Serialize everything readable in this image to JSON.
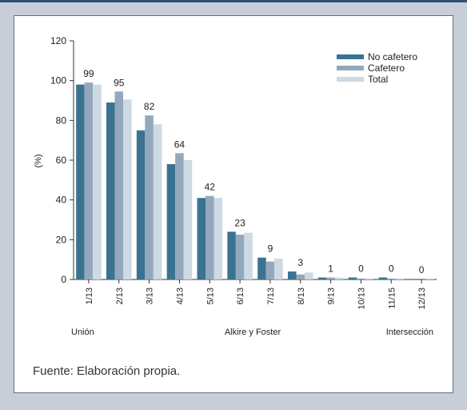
{
  "source_note": "Fuente: Elaboración propia.",
  "colors": {
    "no_cafetero": "#3a7391",
    "cafetero": "#94a8bd",
    "total": "#cdd9e3"
  },
  "chart_data": {
    "type": "bar",
    "title": "",
    "xlabel": "",
    "ylabel": "(%)",
    "ylim": [
      0,
      120
    ],
    "yticks": [
      0,
      20,
      40,
      60,
      80,
      100,
      120
    ],
    "grid": false,
    "legend_position": "top-right",
    "categories": [
      "1/13",
      "2/13",
      "3/13",
      "4/13",
      "5/13",
      "6/13",
      "7/13",
      "8/13",
      "9/13",
      "10/13",
      "11/15",
      "12/13"
    ],
    "series": [
      {
        "name": "No cafetero",
        "values": [
          98,
          89,
          75,
          58,
          41,
          24,
          11,
          4,
          1,
          1,
          1,
          0
        ]
      },
      {
        "name": "Cafetero",
        "values": [
          99,
          94.5,
          82.5,
          63.5,
          42,
          22.5,
          9,
          2.5,
          1,
          0.5,
          0.5,
          0
        ]
      },
      {
        "name": "Total",
        "values": [
          98,
          90.5,
          78,
          60,
          41,
          23.5,
          10.5,
          3.5,
          1,
          0.5,
          0.5,
          0.5
        ]
      }
    ],
    "data_labels": [
      "99",
      "95",
      "82",
      "64",
      "42",
      "23",
      "9",
      "3",
      "1",
      "0",
      "0",
      "0"
    ],
    "group_labels": [
      "Unión",
      "Alkire y Foster",
      "Intersección"
    ]
  }
}
